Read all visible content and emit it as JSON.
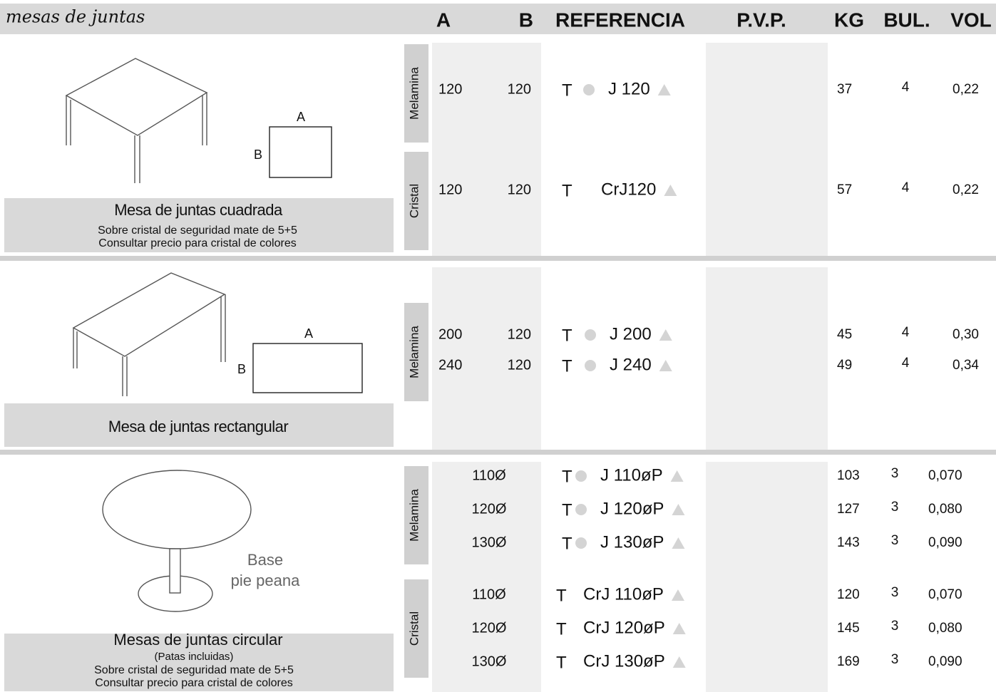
{
  "header": {
    "title": "mesas de juntas",
    "columns": [
      "A",
      "B",
      "REFERENCIA",
      "P.V.P.",
      "KG",
      "BUL.",
      "VOL"
    ]
  },
  "sections": [
    {
      "caption": "Mesa de juntas cuadrada",
      "notes": [
        "Sobre cristal de seguridad mate de 5+5",
        "Consultar precio para cristal de colores"
      ],
      "dim_a": "A",
      "dim_b": "B",
      "groups": [
        {
          "label": "Melamina",
          "rows": [
            {
              "a": "120",
              "b": "120",
              "prefix": "T",
              "ref": "J 120",
              "kg": "37",
              "bul": "4",
              "vol": "0,22"
            }
          ]
        },
        {
          "label": "Cristal",
          "rows": [
            {
              "a": "120",
              "b": "120",
              "prefix": "T",
              "ref": "CrJ120",
              "kg": "57",
              "bul": "4",
              "vol": "0,22"
            }
          ]
        }
      ]
    },
    {
      "caption": "Mesa de juntas rectangular",
      "notes": [],
      "dim_a": "A",
      "dim_b": "B",
      "groups": [
        {
          "label": "Melamina",
          "rows": [
            {
              "a": "200",
              "b": "120",
              "prefix": "T",
              "ref": "J 200",
              "kg": "45",
              "bul": "4",
              "vol": "0,30"
            },
            {
              "a": "240",
              "b": "120",
              "prefix": "T",
              "ref": "J 240",
              "kg": "49",
              "bul": "4",
              "vol": "0,34"
            }
          ]
        }
      ]
    },
    {
      "caption": "Mesas de juntas circular",
      "notes": [
        "(Patas incluidas)",
        "Sobre cristal de seguridad mate de 5+5",
        "Consultar precio para cristal de colores"
      ],
      "base": [
        "Base",
        "pie peana"
      ],
      "groups": [
        {
          "label": "Melamina",
          "rows": [
            {
              "a": "110Ø",
              "prefix": "T",
              "ref": "J 110øP",
              "kg": "103",
              "bul": "3",
              "vol": "0,070"
            },
            {
              "a": "120Ø",
              "prefix": "T",
              "ref": "J 120øP",
              "kg": "127",
              "bul": "3",
              "vol": "0,080"
            },
            {
              "a": "130Ø",
              "prefix": "T",
              "ref": "J 130øP",
              "kg": "143",
              "bul": "3",
              "vol": "0,090"
            }
          ]
        },
        {
          "label": "Cristal",
          "rows": [
            {
              "a": "110Ø",
              "prefix": "T",
              "ref": "CrJ 110øP",
              "kg": "120",
              "bul": "3",
              "vol": "0,070"
            },
            {
              "a": "120Ø",
              "prefix": "T",
              "ref": "CrJ 120øP",
              "kg": "145",
              "bul": "3",
              "vol": "0,080"
            },
            {
              "a": "130Ø",
              "prefix": "T",
              "ref": "CrJ 130øP",
              "kg": "169",
              "bul": "3",
              "vol": "0,090"
            }
          ]
        }
      ]
    }
  ]
}
